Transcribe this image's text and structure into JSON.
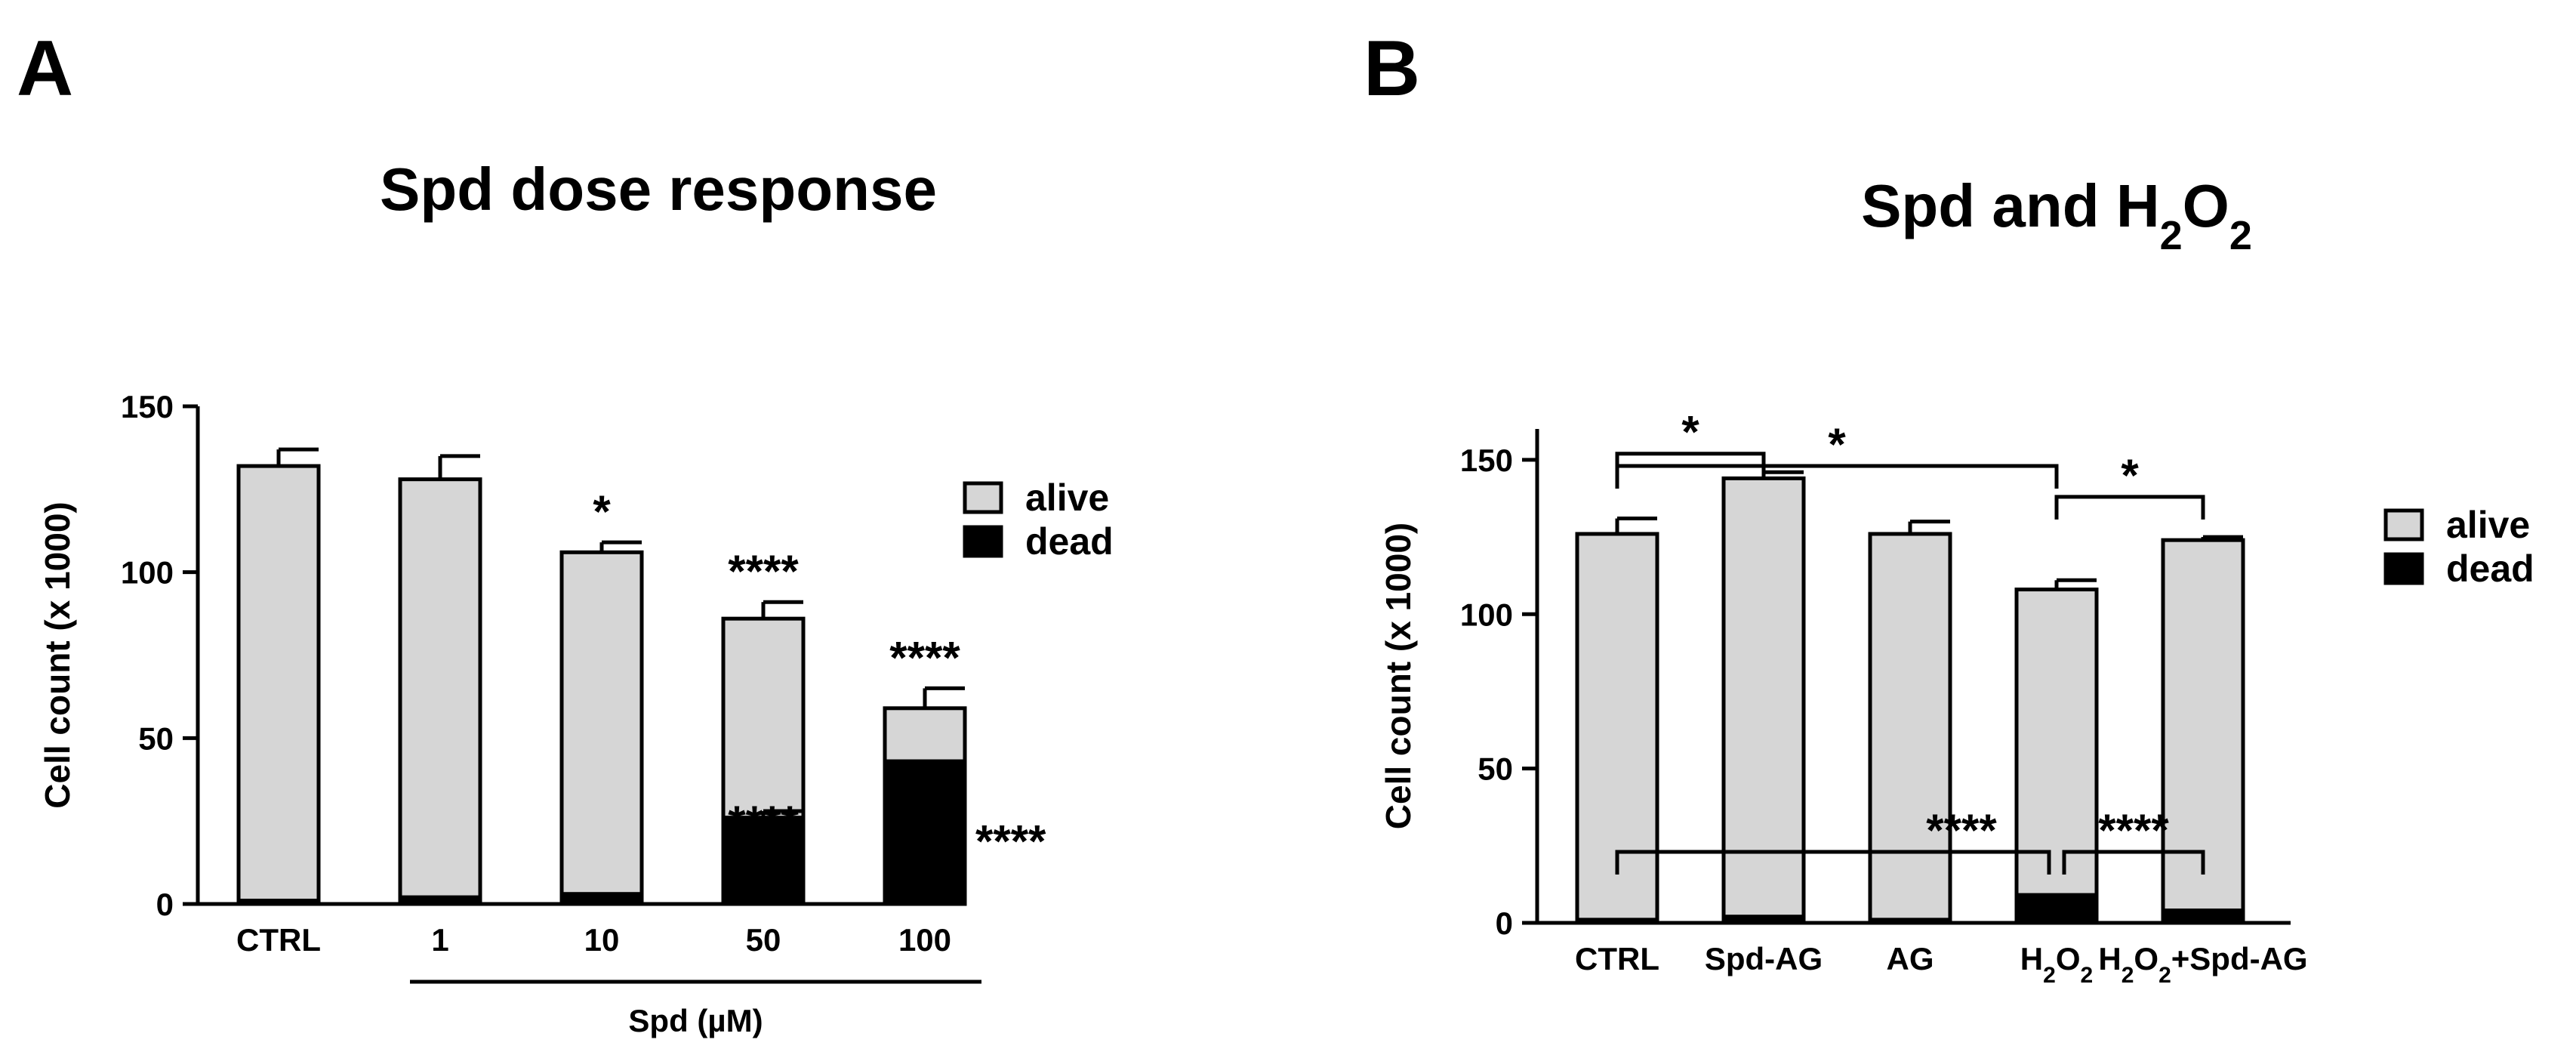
{
  "chart_data": [
    {
      "panel": "A",
      "type": "bar",
      "stacked": true,
      "title": "Spd dose response",
      "ylabel": "Cell count (x 1000)",
      "xlabel": "",
      "ylim": [
        0,
        150
      ],
      "yticks": [
        0,
        50,
        100,
        150
      ],
      "categories": [
        "CTRL",
        "1",
        "10",
        "50",
        "100"
      ],
      "group_label": "Spd (µM)",
      "series": [
        {
          "name": "dead",
          "color": "#000000",
          "values": [
            1,
            2,
            3,
            26,
            43
          ],
          "errors": [
            0,
            0,
            0,
            2,
            0
          ]
        },
        {
          "name": "alive",
          "color": "#d6d6d6",
          "values": [
            131,
            126,
            103,
            60,
            16
          ],
          "errors": [
            5,
            7,
            3,
            5,
            6
          ]
        }
      ],
      "legend": [
        "alive",
        "dead"
      ],
      "legend_position": "right",
      "annotations": [
        {
          "text": "*",
          "category": "10",
          "near": "total"
        },
        {
          "text": "****",
          "category": "50",
          "near": "total"
        },
        {
          "text": "****",
          "category": "50",
          "near": "dead"
        },
        {
          "text": "****",
          "category": "100",
          "near": "total"
        },
        {
          "text": "****",
          "category": "100",
          "near": "dead"
        }
      ]
    },
    {
      "panel": "B",
      "type": "bar",
      "stacked": true,
      "title": "Spd and H2O2",
      "title_parts": [
        "Spd and H",
        "2",
        "O",
        "2"
      ],
      "ylabel": "Cell count (x 1000)",
      "xlabel": "",
      "ylim": [
        0,
        160
      ],
      "yticks": [
        0,
        50,
        100,
        150
      ],
      "categories": [
        "CTRL",
        "Spd-AG",
        "AG",
        "H2O2",
        "H2O2+Spd-AG"
      ],
      "category_parts": [
        [
          "CTRL"
        ],
        [
          "Spd-AG"
        ],
        [
          "AG"
        ],
        [
          "H",
          "2",
          "O",
          "2"
        ],
        [
          "H",
          "2",
          "O",
          "2",
          "+Spd-AG"
        ]
      ],
      "series": [
        {
          "name": "dead",
          "color": "#000000",
          "values": [
            1,
            2,
            1,
            9,
            4
          ],
          "errors": [
            0,
            0,
            0,
            0,
            0
          ]
        },
        {
          "name": "alive",
          "color": "#d6d6d6",
          "values": [
            125,
            142,
            125,
            99,
            120
          ],
          "errors": [
            5,
            2,
            4,
            3,
            1
          ]
        }
      ],
      "legend": [
        "alive",
        "dead"
      ],
      "legend_position": "right",
      "brackets": [
        {
          "from": "CTRL",
          "to": "Spd-AG",
          "text": "*",
          "level": 152
        },
        {
          "from": "CTRL",
          "to": "H2O2",
          "text": "*",
          "level": 148
        },
        {
          "from": "H2O2",
          "to": "H2O2+Spd-AG",
          "text": "*",
          "level": 138
        },
        {
          "from": "CTRL",
          "to": "H2O2",
          "text": "****",
          "level": 23
        },
        {
          "from": "H2O2",
          "to": "H2O2+Spd-AG",
          "text": "****",
          "level": 23
        }
      ]
    }
  ]
}
